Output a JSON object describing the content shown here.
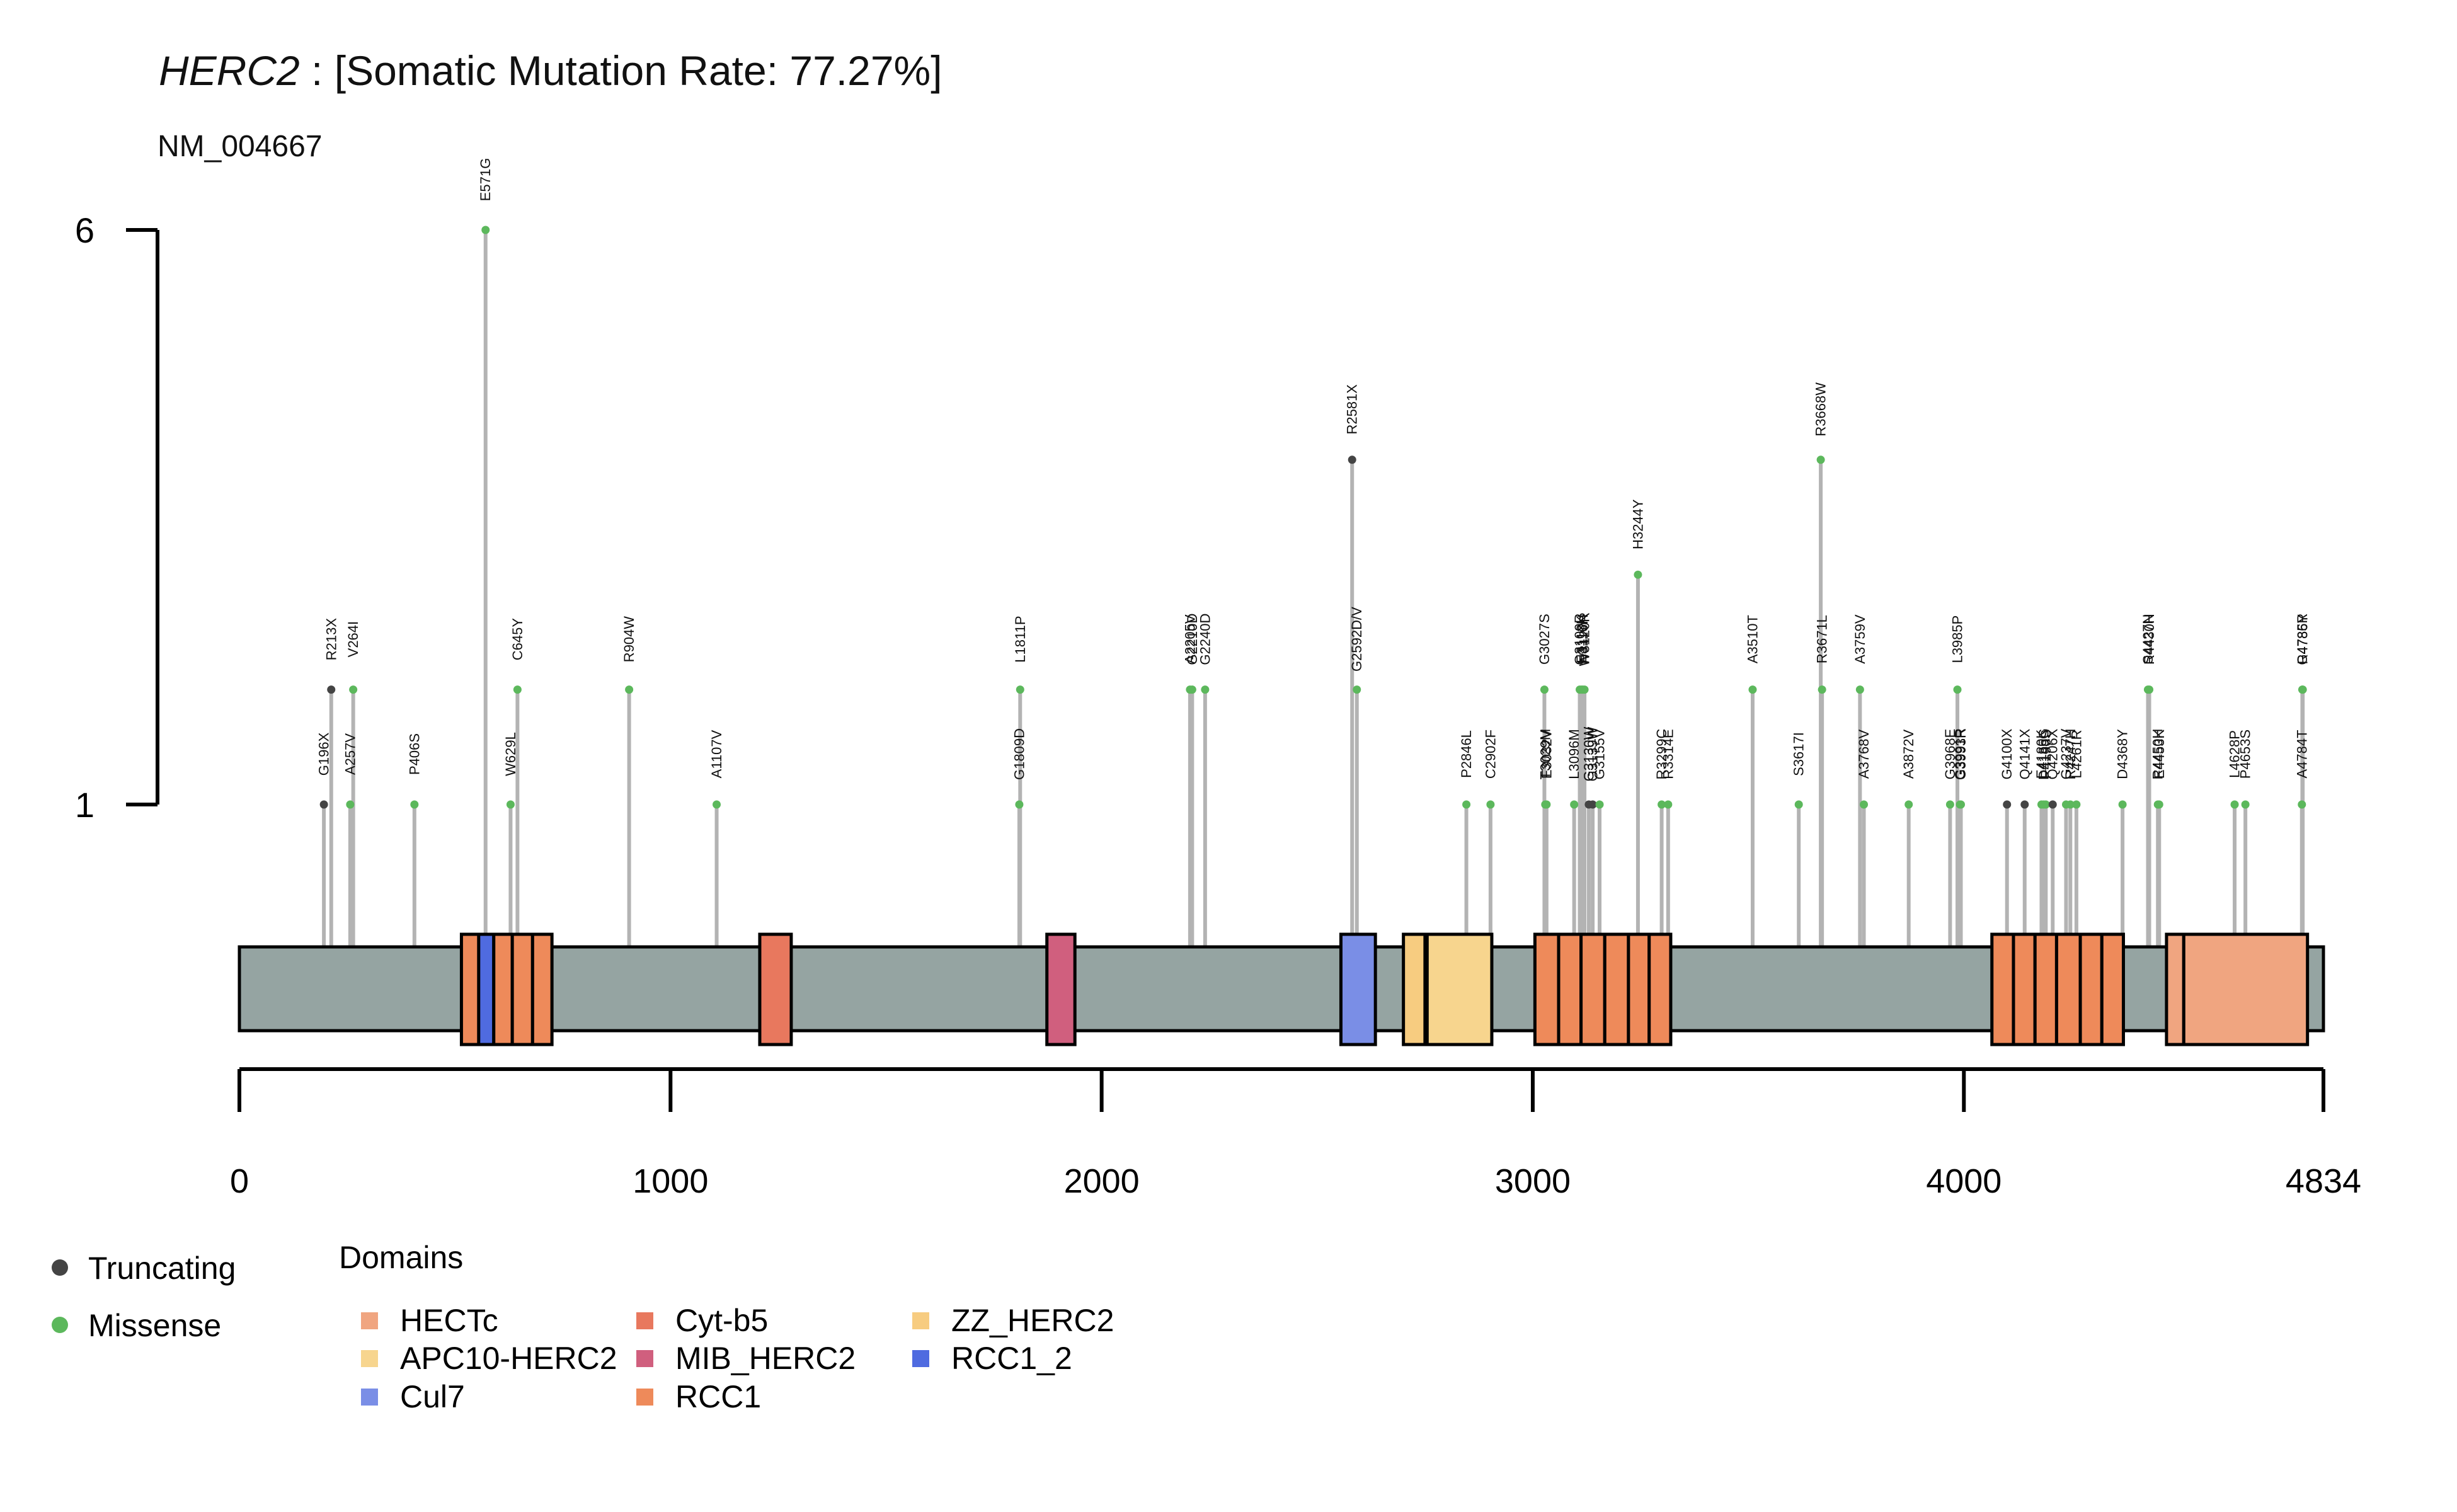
{
  "chart_data": {
    "type": "lollipop",
    "gene": "HERC2",
    "title_rest": " : [Somatic Mutation Rate: 77.27%]",
    "transcript": "NM_004667",
    "protein_length": 4834,
    "y_axis": {
      "ticks": [
        1,
        6
      ]
    },
    "x_axis": {
      "ticks": [
        0,
        1000,
        2000,
        3000,
        4000,
        4834
      ]
    },
    "mutation_type_colors": {
      "Truncating": "#444444",
      "Missense": "#5cb85c"
    },
    "domain_colors": {
      "HECTc": "#f0a580",
      "APC10-HERC2": "#f7d58e",
      "Cul7": "#7a8ee6",
      "Cyt-b5": "#e8785e",
      "MIB_HERC2": "#d05f7e",
      "RCC1": "#ee8a5a",
      "ZZ_HERC2": "#f7cc80",
      "RCC1_2": "#4f6be0"
    },
    "domains": [
      {
        "name": "RCC1",
        "start": 515,
        "end": 570
      },
      {
        "name": "RCC1_2",
        "start": 555,
        "end": 590
      },
      {
        "name": "RCC1",
        "start": 590,
        "end": 633
      },
      {
        "name": "RCC1",
        "start": 633,
        "end": 680
      },
      {
        "name": "RCC1",
        "start": 680,
        "end": 725
      },
      {
        "name": "Cyt-b5",
        "start": 1207,
        "end": 1280
      },
      {
        "name": "MIB_HERC2",
        "start": 1873,
        "end": 1938
      },
      {
        "name": "Cul7",
        "start": 2555,
        "end": 2635
      },
      {
        "name": "ZZ_HERC2",
        "start": 2700,
        "end": 2750
      },
      {
        "name": "APC10-HERC2",
        "start": 2755,
        "end": 2905
      },
      {
        "name": "RCC1",
        "start": 3005,
        "end": 3060
      },
      {
        "name": "RCC1",
        "start": 3060,
        "end": 3112
      },
      {
        "name": "RCC1",
        "start": 3112,
        "end": 3167
      },
      {
        "name": "RCC1",
        "start": 3167,
        "end": 3222
      },
      {
        "name": "RCC1",
        "start": 3222,
        "end": 3270
      },
      {
        "name": "RCC1",
        "start": 3270,
        "end": 3320
      },
      {
        "name": "RCC1",
        "start": 4065,
        "end": 4115
      },
      {
        "name": "RCC1",
        "start": 4115,
        "end": 4165
      },
      {
        "name": "RCC1",
        "start": 4165,
        "end": 4215
      },
      {
        "name": "RCC1",
        "start": 4215,
        "end": 4270
      },
      {
        "name": "RCC1",
        "start": 4270,
        "end": 4320
      },
      {
        "name": "RCC1",
        "start": 4320,
        "end": 4370
      },
      {
        "name": "HECTc",
        "start": 4470,
        "end": 4510
      },
      {
        "name": "HECTc",
        "start": 4510,
        "end": 4797
      }
    ],
    "mutations": [
      {
        "label": "G196X",
        "pos": 196,
        "count": 1,
        "type": "Truncating"
      },
      {
        "label": "R213X",
        "pos": 213,
        "count": 2,
        "type": "Truncating"
      },
      {
        "label": "A257V",
        "pos": 257,
        "count": 1,
        "type": "Missense"
      },
      {
        "label": "V264I",
        "pos": 264,
        "count": 2,
        "type": "Missense"
      },
      {
        "label": "P406S",
        "pos": 406,
        "count": 1,
        "type": "Missense"
      },
      {
        "label": "E571G",
        "pos": 571,
        "count": 6,
        "type": "Missense"
      },
      {
        "label": "W629L",
        "pos": 629,
        "count": 1,
        "type": "Missense"
      },
      {
        "label": "C645Y",
        "pos": 645,
        "count": 2,
        "type": "Missense"
      },
      {
        "label": "R904W",
        "pos": 904,
        "count": 2,
        "type": "Missense"
      },
      {
        "label": "A1107V",
        "pos": 1107,
        "count": 1,
        "type": "Missense"
      },
      {
        "label": "G1809D",
        "pos": 1809,
        "count": 1,
        "type": "Missense"
      },
      {
        "label": "L1811P",
        "pos": 1811,
        "count": 2,
        "type": "Missense"
      },
      {
        "label": "A2205V",
        "pos": 2205,
        "count": 2,
        "type": "Missense"
      },
      {
        "label": "G2210D",
        "pos": 2210,
        "count": 2,
        "type": "Missense"
      },
      {
        "label": "G2240D",
        "pos": 2240,
        "count": 2,
        "type": "Missense"
      },
      {
        "label": "R2581X",
        "pos": 2581,
        "count": 4,
        "type": "Truncating"
      },
      {
        "label": "G2592D/V",
        "pos": 2592,
        "count": 2,
        "type": "Missense"
      },
      {
        "label": "P2846L",
        "pos": 2846,
        "count": 1,
        "type": "Missense"
      },
      {
        "label": "C2902F",
        "pos": 2902,
        "count": 1,
        "type": "Missense"
      },
      {
        "label": "G3027S",
        "pos": 3027,
        "count": 2,
        "type": "Missense"
      },
      {
        "label": "T3029M",
        "pos": 3029,
        "count": 1,
        "type": "Missense"
      },
      {
        "label": "E3032V",
        "pos": 3032,
        "count": 1,
        "type": "Missense"
      },
      {
        "label": "L3096M",
        "pos": 3096,
        "count": 1,
        "type": "Missense"
      },
      {
        "label": "G3109R",
        "pos": 3109,
        "count": 2,
        "type": "Missense"
      },
      {
        "label": "E3113K",
        "pos": 3113,
        "count": 2,
        "type": "Missense"
      },
      {
        "label": "N3116H",
        "pos": 3116,
        "count": 2,
        "type": "Missense"
      },
      {
        "label": "W3120R",
        "pos": 3120,
        "count": 2,
        "type": "Missense"
      },
      {
        "label": "G3130W",
        "pos": 3130,
        "count": 1,
        "type": "Truncating"
      },
      {
        "label": "G3139W",
        "pos": 3139,
        "count": 1,
        "type": "Truncating"
      },
      {
        "label": "G3155V",
        "pos": 3155,
        "count": 1,
        "type": "Missense"
      },
      {
        "label": "H3244Y",
        "pos": 3244,
        "count": 3,
        "type": "Missense"
      },
      {
        "label": "R3299C",
        "pos": 3299,
        "count": 1,
        "type": "Missense"
      },
      {
        "label": "R3314E",
        "pos": 3314,
        "count": 1,
        "type": "Missense"
      },
      {
        "label": "A3510T",
        "pos": 3510,
        "count": 2,
        "type": "Missense"
      },
      {
        "label": "S3617I",
        "pos": 3617,
        "count": 1,
        "type": "Missense"
      },
      {
        "label": "R3668W",
        "pos": 3668,
        "count": 4,
        "type": "Missense"
      },
      {
        "label": "R3671L",
        "pos": 3671,
        "count": 2,
        "type": "Missense"
      },
      {
        "label": "A3759V",
        "pos": 3759,
        "count": 2,
        "type": "Missense"
      },
      {
        "label": "A3768V",
        "pos": 3768,
        "count": 1,
        "type": "Missense"
      },
      {
        "label": "A3872V",
        "pos": 3872,
        "count": 1,
        "type": "Missense"
      },
      {
        "label": "G3968E",
        "pos": 3968,
        "count": 1,
        "type": "Missense"
      },
      {
        "label": "L3985P",
        "pos": 3985,
        "count": 2,
        "type": "Missense"
      },
      {
        "label": "G3991R",
        "pos": 3991,
        "count": 1,
        "type": "Missense"
      },
      {
        "label": "G3993R",
        "pos": 3993,
        "count": 1,
        "type": "Missense"
      },
      {
        "label": "G4100X",
        "pos": 4100,
        "count": 1,
        "type": "Truncating"
      },
      {
        "label": "Q4141X",
        "pos": 4141,
        "count": 1,
        "type": "Truncating"
      },
      {
        "label": "E4180K",
        "pos": 4180,
        "count": 1,
        "type": "Missense"
      },
      {
        "label": "D4185G",
        "pos": 4185,
        "count": 1,
        "type": "Missense"
      },
      {
        "label": "P4190S",
        "pos": 4190,
        "count": 1,
        "type": "Missense"
      },
      {
        "label": "Q4206X",
        "pos": 4206,
        "count": 1,
        "type": "Truncating"
      },
      {
        "label": "G4237V",
        "pos": 4237,
        "count": 1,
        "type": "Missense"
      },
      {
        "label": "R4247H",
        "pos": 4247,
        "count": 1,
        "type": "Missense"
      },
      {
        "label": "L4261R",
        "pos": 4261,
        "count": 1,
        "type": "Missense"
      },
      {
        "label": "D4368Y",
        "pos": 4368,
        "count": 1,
        "type": "Missense"
      },
      {
        "label": "S4427N",
        "pos": 4427,
        "count": 2,
        "type": "Missense"
      },
      {
        "label": "R4430H",
        "pos": 4430,
        "count": 2,
        "type": "Missense"
      },
      {
        "label": "R4450H",
        "pos": 4450,
        "count": 1,
        "type": "Missense"
      },
      {
        "label": "E4453K",
        "pos": 4453,
        "count": 1,
        "type": "Missense"
      },
      {
        "label": "L4628P",
        "pos": 4628,
        "count": 1,
        "type": "Missense"
      },
      {
        "label": "P4653S",
        "pos": 4653,
        "count": 1,
        "type": "Missense"
      },
      {
        "label": "A4784T",
        "pos": 4784,
        "count": 1,
        "type": "Missense"
      },
      {
        "label": "G4785R",
        "pos": 4785,
        "count": 2,
        "type": "Missense"
      },
      {
        "label": "R4786Y",
        "pos": 4786,
        "count": 2,
        "type": "Missense"
      }
    ],
    "legend": {
      "mutation_types": [
        "Truncating",
        "Missense"
      ],
      "domains_title": "Domains",
      "domains_order": [
        "HECTc",
        "APC10-HERC2",
        "Cul7",
        "Cyt-b5",
        "MIB_HERC2",
        "RCC1",
        "ZZ_HERC2",
        "RCC1_2"
      ]
    }
  }
}
